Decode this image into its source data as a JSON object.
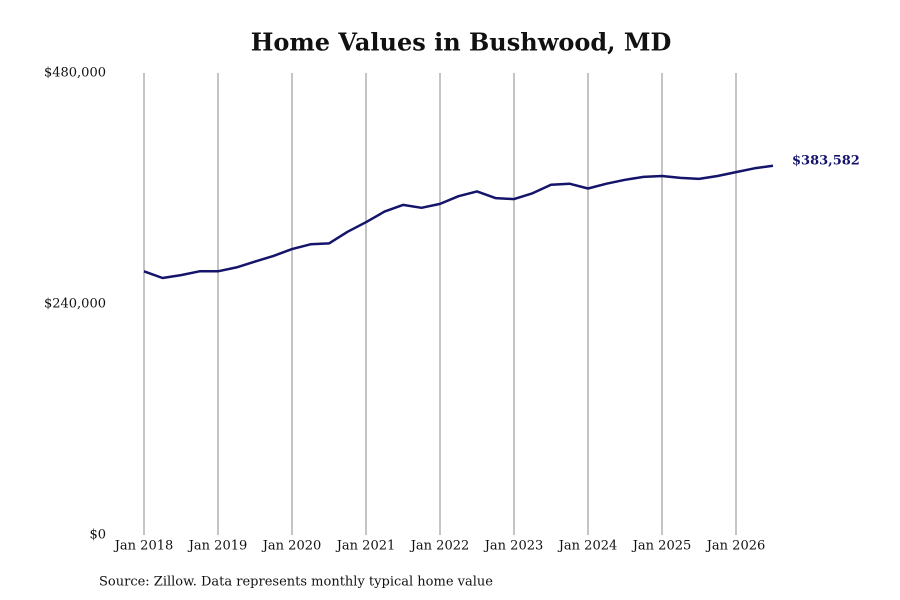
{
  "chart_data": {
    "type": "line",
    "title": "Home Values in Bushwood, MD",
    "source": "Source: Zillow. Data represents monthly typical home value",
    "x": [
      "2018-01",
      "2018-04",
      "2018-07",
      "2018-10",
      "2019-01",
      "2019-04",
      "2019-07",
      "2019-10",
      "2020-01",
      "2020-04",
      "2020-07",
      "2020-10",
      "2021-01",
      "2021-04",
      "2021-07",
      "2021-10",
      "2022-01",
      "2022-04",
      "2022-07",
      "2022-10",
      "2023-01",
      "2023-04",
      "2023-07",
      "2023-10",
      "2024-01",
      "2024-04",
      "2024-07",
      "2024-10",
      "2025-01",
      "2025-04",
      "2025-07",
      "2025-10",
      "2026-01",
      "2026-04",
      "2026-07"
    ],
    "values": [
      274000,
      267000,
      270000,
      274000,
      274000,
      278000,
      284000,
      290000,
      297000,
      302000,
      303000,
      315000,
      325000,
      336000,
      343000,
      340000,
      344000,
      352000,
      357000,
      350000,
      349000,
      355000,
      364000,
      365000,
      360000,
      365000,
      369000,
      372000,
      373000,
      371000,
      370000,
      373000,
      377000,
      381000,
      383582
    ],
    "value_labels": [
      null,
      null,
      null,
      null,
      null,
      null,
      null,
      null,
      null,
      null,
      null,
      null,
      null,
      null,
      null,
      null,
      null,
      null,
      null,
      null,
      null,
      null,
      null,
      null,
      null,
      null,
      null,
      null,
      null,
      null,
      null,
      null,
      null,
      null,
      "$383,582"
    ],
    "color": "#14146b",
    "xlim": [
      "2018-01",
      "2026-07"
    ],
    "xticks": [
      {
        "value": "2018-01",
        "label": "Jan 2018"
      },
      {
        "value": "2019-01",
        "label": "Jan 2019"
      },
      {
        "value": "2020-01",
        "label": "Jan 2020"
      },
      {
        "value": "2021-01",
        "label": "Jan 2021"
      },
      {
        "value": "2022-01",
        "label": "Jan 2022"
      },
      {
        "value": "2023-01",
        "label": "Jan 2023"
      },
      {
        "value": "2024-01",
        "label": "Jan 2024"
      },
      {
        "value": "2025-01",
        "label": "Jan 2025"
      },
      {
        "value": "2026-01",
        "label": "Jan 2026"
      }
    ],
    "ylim": [
      0,
      480000
    ],
    "yticks": [
      {
        "value": 0,
        "label": "$0"
      },
      {
        "value": 240000,
        "label": "$240,000"
      },
      {
        "value": 480000,
        "label": "$480,000"
      }
    ],
    "grid": "x"
  }
}
